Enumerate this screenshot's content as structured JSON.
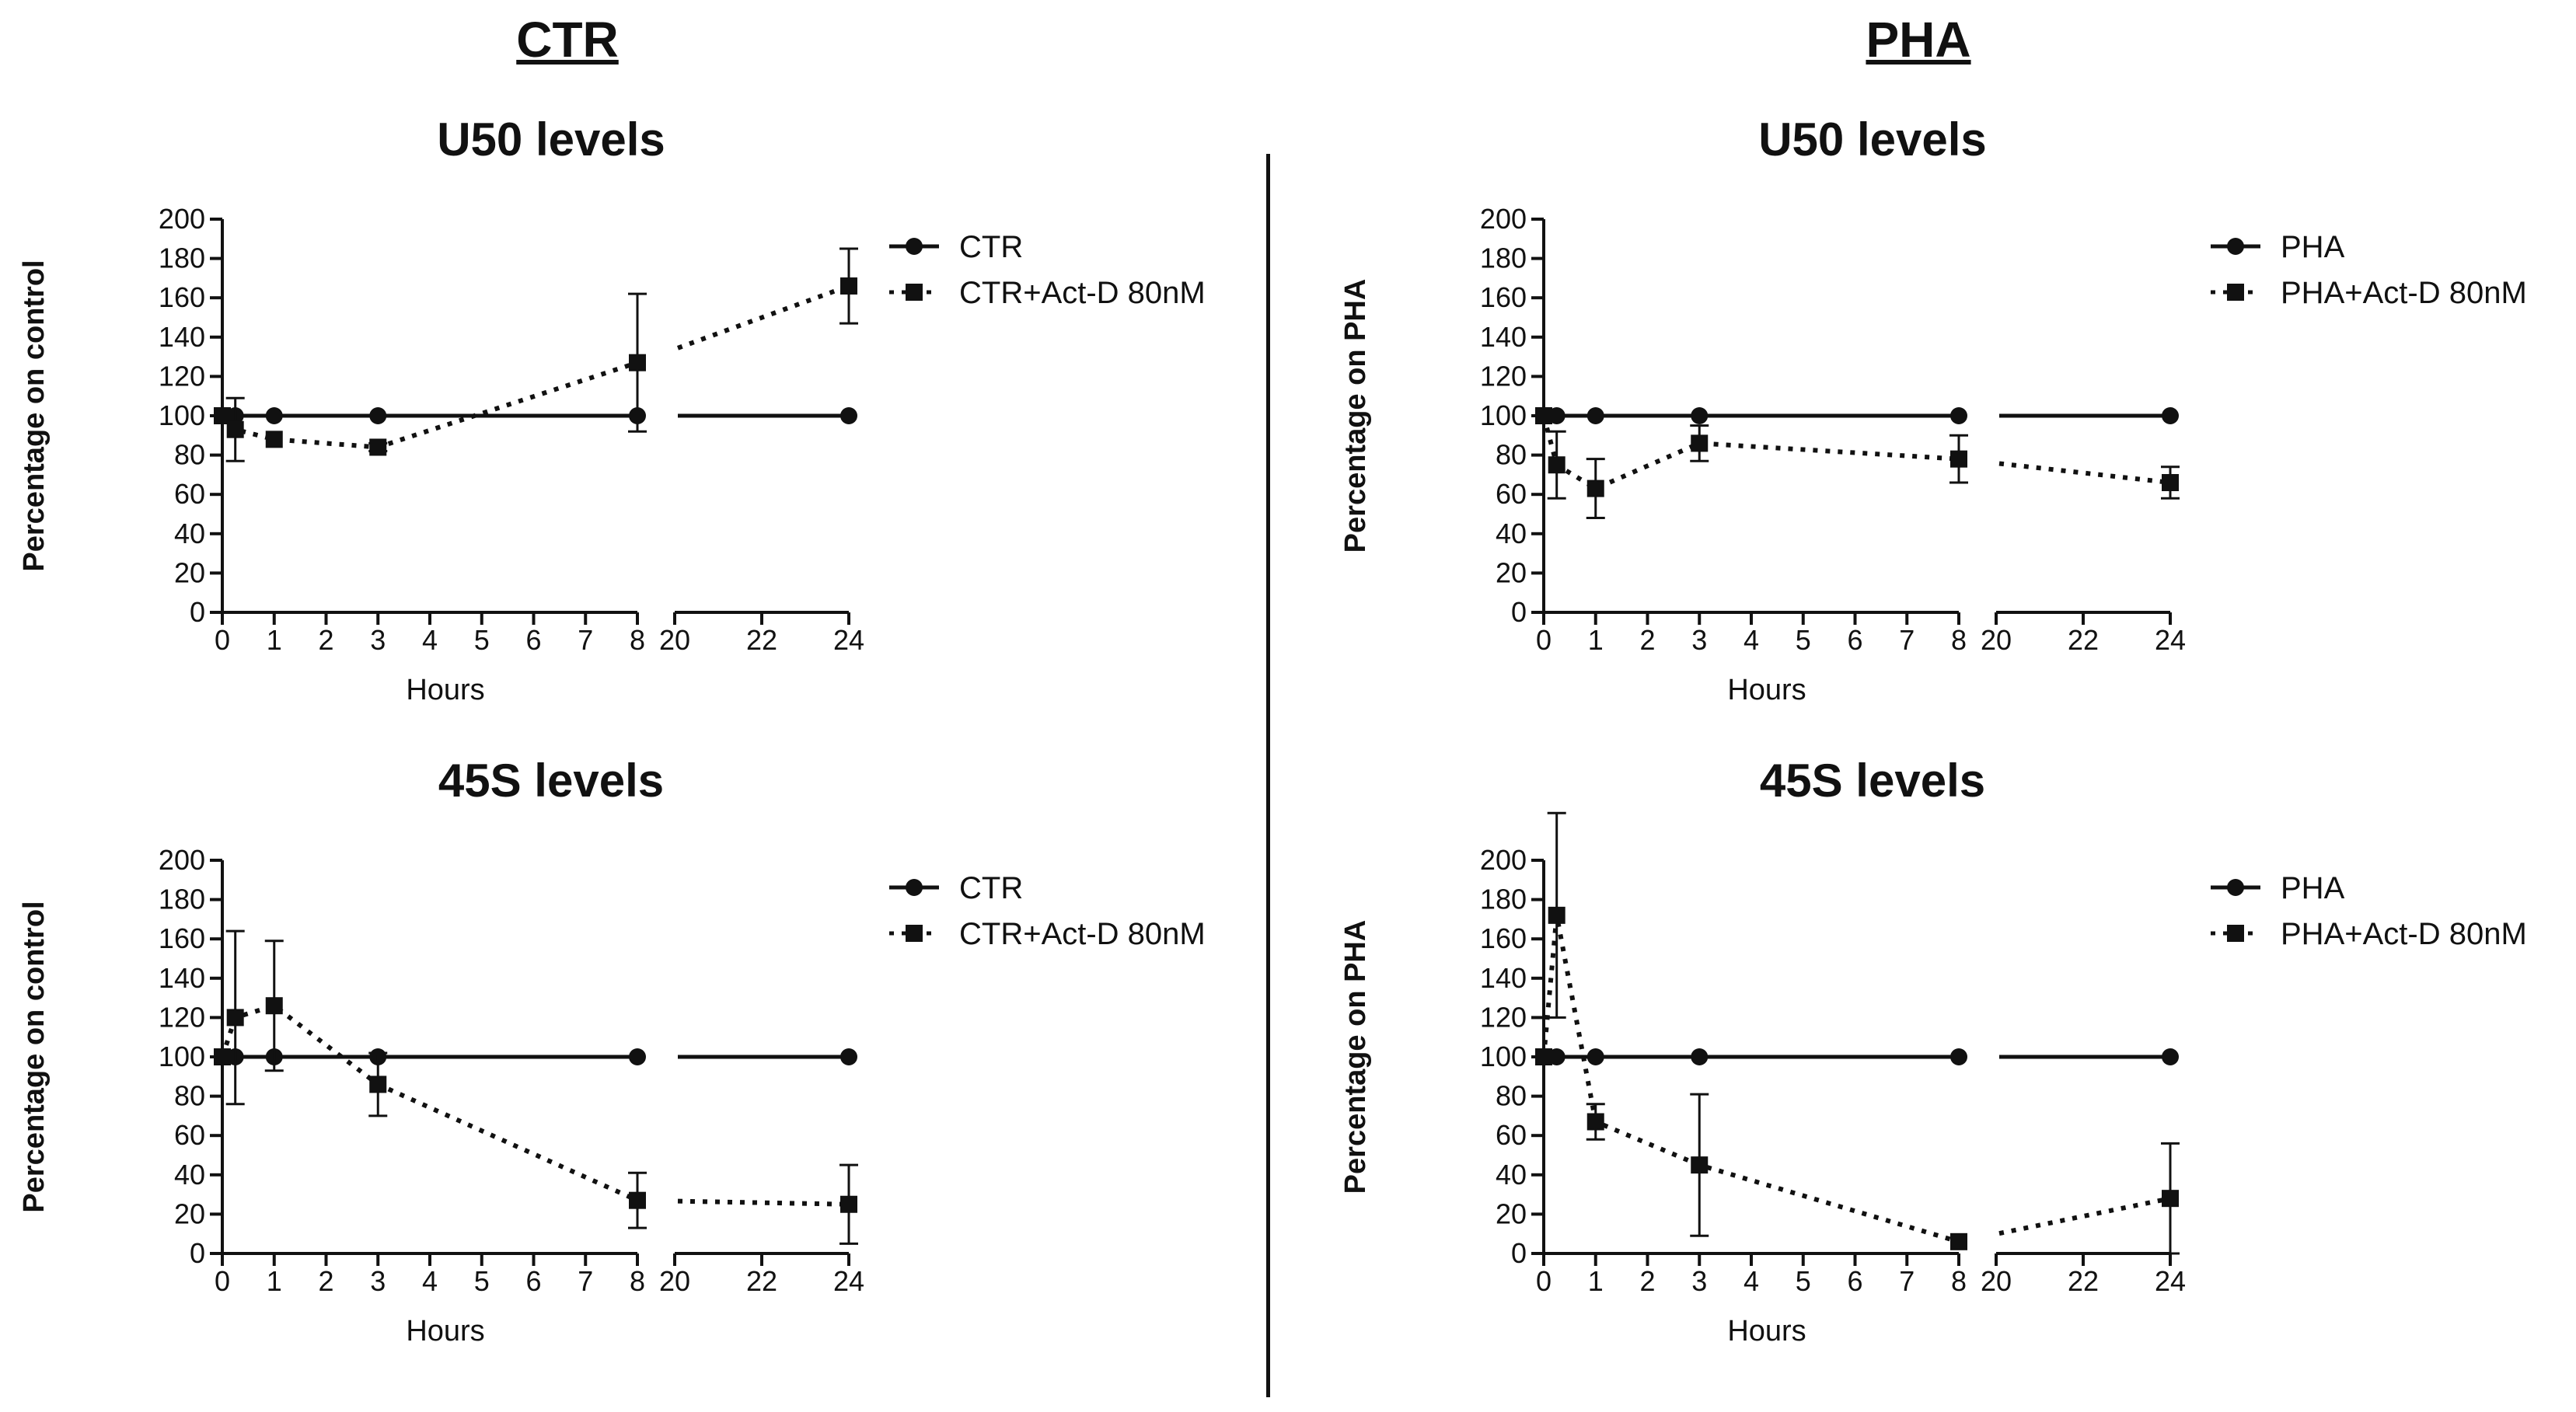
{
  "groups": [
    {
      "key": "ctr",
      "title": "CTR"
    },
    {
      "key": "pha",
      "title": "PHA"
    }
  ],
  "colors": {
    "ink": "#111111",
    "background": "#ffffff"
  },
  "chart_data": [
    {
      "id": "ctr-u50",
      "group": "CTR",
      "type": "line",
      "title": "U50 levels",
      "xlabel": "Hours",
      "ylabel": "Percentage on control",
      "ylim": [
        0,
        200
      ],
      "yticks": [
        0,
        20,
        40,
        60,
        80,
        100,
        120,
        140,
        160,
        180,
        200
      ],
      "x_segments": [
        {
          "range": [
            0,
            8
          ],
          "ticks": [
            0,
            1,
            2,
            3,
            4,
            5,
            6,
            7,
            8
          ]
        },
        {
          "range": [
            20,
            24
          ],
          "ticks": [
            20,
            22,
            24
          ]
        }
      ],
      "legend_position": "right",
      "series": [
        {
          "name": "CTR",
          "marker": "circle",
          "line": "solid",
          "x": [
            0,
            0.25,
            1,
            3,
            8,
            24
          ],
          "y": [
            100,
            100,
            100,
            100,
            100,
            100
          ],
          "err": [
            0,
            0,
            0,
            0,
            0,
            0
          ]
        },
        {
          "name": "CTR+Act-D 80nM",
          "marker": "square",
          "line": "dotted",
          "x": [
            0,
            0.25,
            1,
            3,
            8,
            24
          ],
          "y": [
            100,
            93,
            88,
            84,
            127,
            166
          ],
          "err": [
            0,
            16,
            0,
            2,
            35,
            19
          ]
        }
      ]
    },
    {
      "id": "ctr-45s",
      "group": "CTR",
      "type": "line",
      "title": "45S levels",
      "xlabel": "Hours",
      "ylabel": "Percentage on control",
      "ylim": [
        0,
        200
      ],
      "yticks": [
        0,
        20,
        40,
        60,
        80,
        100,
        120,
        140,
        160,
        180,
        200
      ],
      "x_segments": [
        {
          "range": [
            0,
            8
          ],
          "ticks": [
            0,
            1,
            2,
            3,
            4,
            5,
            6,
            7,
            8
          ]
        },
        {
          "range": [
            20,
            24
          ],
          "ticks": [
            20,
            22,
            24
          ]
        }
      ],
      "legend_position": "right",
      "series": [
        {
          "name": "CTR",
          "marker": "circle",
          "line": "solid",
          "x": [
            0,
            0.25,
            1,
            3,
            8,
            24
          ],
          "y": [
            100,
            100,
            100,
            100,
            100,
            100
          ],
          "err": [
            0,
            0,
            0,
            0,
            0,
            0
          ]
        },
        {
          "name": "CTR+Act-D 80nM",
          "marker": "square",
          "line": "dotted",
          "x": [
            0,
            0.25,
            1,
            3,
            8,
            24
          ],
          "y": [
            100,
            120,
            126,
            86,
            27,
            25
          ],
          "err": [
            0,
            44,
            33,
            16,
            14,
            20
          ]
        }
      ]
    },
    {
      "id": "pha-u50",
      "group": "PHA",
      "type": "line",
      "title": "U50 levels",
      "xlabel": "Hours",
      "ylabel": "Percentage on PHA",
      "ylim": [
        0,
        200
      ],
      "yticks": [
        0,
        20,
        40,
        60,
        80,
        100,
        120,
        140,
        160,
        180,
        200
      ],
      "x_segments": [
        {
          "range": [
            0,
            8
          ],
          "ticks": [
            0,
            1,
            2,
            3,
            4,
            5,
            6,
            7,
            8
          ]
        },
        {
          "range": [
            20,
            24
          ],
          "ticks": [
            20,
            22,
            24
          ]
        }
      ],
      "legend_position": "right",
      "series": [
        {
          "name": "PHA",
          "marker": "circle",
          "line": "solid",
          "x": [
            0,
            0.25,
            1,
            3,
            8,
            24
          ],
          "y": [
            100,
            100,
            100,
            100,
            100,
            100
          ],
          "err": [
            0,
            0,
            0,
            0,
            0,
            0
          ]
        },
        {
          "name": "PHA+Act-D 80nM",
          "marker": "square",
          "line": "dotted",
          "x": [
            0,
            0.25,
            1,
            3,
            8,
            24
          ],
          "y": [
            100,
            75,
            63,
            86,
            78,
            66
          ],
          "err": [
            0,
            17,
            15,
            9,
            12,
            8
          ]
        }
      ]
    },
    {
      "id": "pha-45s",
      "group": "PHA",
      "type": "line",
      "title": "45S levels",
      "xlabel": "Hours",
      "ylabel": "Percentage on PHA",
      "ylim": [
        0,
        200
      ],
      "yticks": [
        0,
        20,
        40,
        60,
        80,
        100,
        120,
        140,
        160,
        180,
        200
      ],
      "x_segments": [
        {
          "range": [
            0,
            8
          ],
          "ticks": [
            0,
            1,
            2,
            3,
            4,
            5,
            6,
            7,
            8
          ]
        },
        {
          "range": [
            20,
            24
          ],
          "ticks": [
            20,
            22,
            24
          ]
        }
      ],
      "legend_position": "right",
      "series": [
        {
          "name": "PHA",
          "marker": "circle",
          "line": "solid",
          "x": [
            0,
            0.25,
            1,
            3,
            8,
            24
          ],
          "y": [
            100,
            100,
            100,
            100,
            100,
            100
          ],
          "err": [
            0,
            0,
            0,
            0,
            0,
            0
          ]
        },
        {
          "name": "PHA+Act-D 80nM",
          "marker": "square",
          "line": "dotted",
          "x": [
            0,
            0.25,
            1,
            3,
            8,
            24
          ],
          "y": [
            100,
            172,
            67,
            45,
            6,
            28
          ],
          "err": [
            0,
            52,
            9,
            36,
            0,
            28
          ]
        }
      ]
    }
  ]
}
